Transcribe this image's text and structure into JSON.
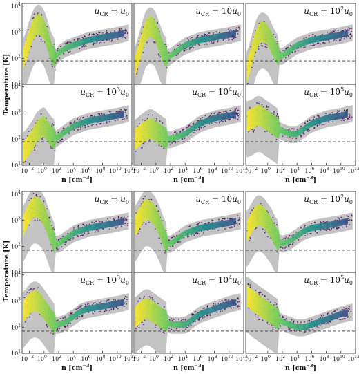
{
  "figure": {
    "ylabel": "Temperature [K]",
    "xlabel": "n [cm$^{-3}$]",
    "xlabel_text": "n [cm",
    "xlabel_sup": "−3",
    "xlabel_end": "]"
  },
  "panel_labels": [
    {
      "base": "u",
      "sub": "CR",
      "rel": " = ",
      "coef": "",
      "exp": "",
      "tail": "u",
      "tail_sub": "0"
    },
    {
      "base": "u",
      "sub": "CR",
      "rel": " = ",
      "coef": "10",
      "exp": "",
      "tail": "u",
      "tail_sub": "0"
    },
    {
      "base": "u",
      "sub": "CR",
      "rel": " = ",
      "coef": "10",
      "exp": "2",
      "tail": "u",
      "tail_sub": "0"
    },
    {
      "base": "u",
      "sub": "CR",
      "rel": " = ",
      "coef": "10",
      "exp": "3",
      "tail": "u",
      "tail_sub": "0"
    },
    {
      "base": "u",
      "sub": "CR",
      "rel": " = ",
      "coef": "10",
      "exp": "4",
      "tail": "u",
      "tail_sub": "0"
    },
    {
      "base": "u",
      "sub": "CR",
      "rel": " = ",
      "coef": "10",
      "exp": "5",
      "tail": "u",
      "tail_sub": "0"
    }
  ],
  "x_ticks": [
    {
      "base": "10",
      "exp": "−2",
      "value": -2
    },
    {
      "base": "10",
      "exp": "0",
      "value": 0
    },
    {
      "base": "10",
      "exp": "2",
      "value": 2
    },
    {
      "base": "10",
      "exp": "4",
      "value": 4
    },
    {
      "base": "10",
      "exp": "6",
      "value": 6
    },
    {
      "base": "10",
      "exp": "8",
      "value": 8
    },
    {
      "base": "10",
      "exp": "10",
      "value": 10
    },
    {
      "base": "10",
      "exp": "12",
      "value": 12
    }
  ],
  "y_ticks": [
    {
      "base": "10",
      "exp": "1",
      "value": 1
    },
    {
      "base": "10",
      "exp": "2",
      "value": 2
    },
    {
      "base": "10",
      "exp": "3",
      "value": 3
    },
    {
      "base": "10",
      "exp": "4",
      "value": 4
    }
  ],
  "colors": {
    "grey_envelope": "#bdbdbd",
    "colormap": [
      "#440154",
      "#3b528b",
      "#21918c",
      "#5ec962",
      "#fde725"
    ],
    "reference_line": "#333333"
  },
  "chart_data": [
    {
      "type": "heatmap",
      "block": "top",
      "description_note": "",
      "x_scale": "log",
      "y_scale": "log",
      "xlim_log10": [
        -3,
        12
      ],
      "ylim_log10": [
        1,
        4.1
      ],
      "hline_log10_T": 1.9,
      "panels": [
        {
          "label_index": 0,
          "ridge_log10": {
            "x": [
              -2.8,
              -2.0,
              -1.5,
              -1.0,
              -0.5,
              0,
              0.5,
              1.0,
              1.5,
              2,
              3,
              4,
              5,
              6,
              8,
              10,
              11.5
            ],
            "T": [
              2.0,
              2.7,
              3.1,
              3.3,
              3.3,
              3.1,
              2.7,
              2.2,
              2.0,
              2.2,
              2.4,
              2.5,
              2.6,
              2.7,
              2.8,
              2.9,
              3.0
            ]
          }
        },
        {
          "label_index": 1,
          "ridge_log10": {
            "x": [
              -2.8,
              -2.0,
              -1.5,
              -1.0,
              -0.5,
              0,
              0.5,
              1.0,
              1.5,
              2,
              3,
              4,
              5,
              6,
              8,
              10,
              11.5
            ],
            "T": [
              1.7,
              2.5,
              3.0,
              3.2,
              3.2,
              3.0,
              2.6,
              2.2,
              2.0,
              2.1,
              2.3,
              2.5,
              2.6,
              2.7,
              2.8,
              2.9,
              3.0
            ]
          }
        },
        {
          "label_index": 2,
          "ridge_log10": {
            "x": [
              -2.8,
              -2.0,
              -1.5,
              -1.0,
              -0.5,
              0,
              0.5,
              1.0,
              1.5,
              2,
              3,
              4,
              5,
              6,
              8,
              10,
              11.5
            ],
            "T": [
              1.5,
              2.3,
              2.8,
              3.0,
              3.0,
              2.9,
              2.6,
              2.3,
              2.1,
              2.1,
              2.3,
              2.5,
              2.6,
              2.7,
              2.8,
              2.9,
              3.0
            ]
          }
        },
        {
          "label_index": 3,
          "ridge_log10": {
            "x": [
              -2.8,
              -2.0,
              -1.5,
              -1.0,
              -0.5,
              0,
              0.5,
              1.0,
              1.5,
              2,
              3,
              4,
              5,
              6,
              8,
              10,
              11.5
            ],
            "T": [
              1.5,
              1.8,
              2.0,
              2.3,
              2.4,
              2.5,
              2.3,
              2.1,
              2.0,
              2.1,
              2.3,
              2.5,
              2.6,
              2.7,
              2.8,
              2.9,
              3.0
            ]
          }
        },
        {
          "label_index": 4,
          "ridge_log10": {
            "x": [
              -2.8,
              -2.0,
              -1.5,
              -1.0,
              -0.5,
              0,
              0.5,
              1.0,
              1.5,
              2,
              3,
              4,
              5,
              6,
              8,
              10,
              11.5
            ],
            "T": [
              2.0,
              2.2,
              2.3,
              2.4,
              2.4,
              2.3,
              2.2,
              2.1,
              2.0,
              2.0,
              2.1,
              2.2,
              2.4,
              2.6,
              2.8,
              2.9,
              3.0
            ]
          }
        },
        {
          "label_index": 5,
          "ridge_log10": {
            "x": [
              -2.8,
              -2.0,
              -1.5,
              -1.0,
              -0.5,
              0,
              0.5,
              1.0,
              1.5,
              2,
              3,
              4,
              5,
              6,
              8,
              10,
              11.5
            ],
            "T": [
              2.7,
              2.8,
              2.9,
              2.9,
              2.8,
              2.7,
              2.6,
              2.5,
              2.4,
              2.3,
              2.2,
              2.2,
              2.4,
              2.6,
              2.8,
              2.9,
              3.0
            ]
          }
        }
      ]
    },
    {
      "type": "heatmap",
      "block": "bottom",
      "description_note": "",
      "x_scale": "log",
      "y_scale": "log",
      "xlim_log10": [
        -3,
        12
      ],
      "ylim_log10": [
        1,
        4.1
      ],
      "hline_log10_T": 1.85,
      "panels": [
        {
          "label_index": 0,
          "ridge_log10": {
            "x": [
              -2.8,
              -2.0,
              -1.5,
              -1.0,
              -0.5,
              0,
              0.5,
              1.0,
              1.5,
              2,
              3,
              4,
              5,
              6,
              8,
              10,
              11.5
            ],
            "T": [
              2.8,
              3.3,
              3.5,
              3.5,
              3.4,
              3.2,
              2.8,
              2.4,
              2.1,
              2.1,
              2.3,
              2.5,
              2.6,
              2.7,
              2.8,
              2.9,
              3.0
            ]
          }
        },
        {
          "label_index": 1,
          "ridge_log10": {
            "x": [
              -2.8,
              -2.0,
              -1.5,
              -1.0,
              -0.5,
              0,
              0.5,
              1.0,
              1.5,
              2,
              3,
              4,
              5,
              6,
              8,
              10,
              11.5
            ],
            "T": [
              2.8,
              3.2,
              3.4,
              3.4,
              3.3,
              3.1,
              2.8,
              2.4,
              2.1,
              2.1,
              2.3,
              2.5,
              2.6,
              2.7,
              2.8,
              2.9,
              3.0
            ]
          }
        },
        {
          "label_index": 2,
          "ridge_log10": {
            "x": [
              -2.8,
              -2.0,
              -1.5,
              -1.0,
              -0.5,
              0,
              0.5,
              1.0,
              1.5,
              2,
              3,
              4,
              5,
              6,
              8,
              10,
              11.5
            ],
            "T": [
              2.6,
              3.0,
              3.2,
              3.2,
              3.1,
              2.9,
              2.7,
              2.4,
              2.2,
              2.1,
              2.2,
              2.4,
              2.6,
              2.7,
              2.8,
              2.9,
              3.0
            ]
          }
        },
        {
          "label_index": 3,
          "ridge_log10": {
            "x": [
              -2.8,
              -2.0,
              -1.5,
              -1.0,
              -0.5,
              0,
              0.5,
              1.0,
              1.5,
              2,
              3,
              4,
              5,
              6,
              8,
              10,
              11.5
            ],
            "T": [
              2.6,
              2.9,
              3.0,
              3.0,
              2.9,
              2.7,
              2.5,
              2.3,
              2.1,
              2.1,
              2.2,
              2.4,
              2.6,
              2.7,
              2.8,
              2.9,
              3.0
            ]
          }
        },
        {
          "label_index": 4,
          "ridge_log10": {
            "x": [
              -2.8,
              -2.0,
              -1.5,
              -1.0,
              -0.5,
              0,
              0.5,
              1.0,
              1.5,
              2,
              3,
              4,
              5,
              6,
              8,
              10,
              11.5
            ],
            "T": [
              2.4,
              2.6,
              2.7,
              2.7,
              2.6,
              2.5,
              2.4,
              2.3,
              2.2,
              2.1,
              2.1,
              2.1,
              2.3,
              2.5,
              2.7,
              2.9,
              3.0
            ]
          }
        },
        {
          "label_index": 5,
          "ridge_log10": {
            "x": [
              -2.8,
              -2.0,
              -1.5,
              -1.0,
              -0.5,
              0,
              0.5,
              1.0,
              1.5,
              2,
              3,
              4,
              5,
              6,
              8,
              10,
              11.5
            ],
            "T": [
              3.2,
              3.0,
              2.9,
              2.8,
              2.7,
              2.6,
              2.5,
              2.4,
              2.3,
              2.2,
              2.1,
              2.0,
              2.0,
              2.1,
              2.3,
              2.5,
              2.6
            ]
          }
        }
      ]
    }
  ]
}
